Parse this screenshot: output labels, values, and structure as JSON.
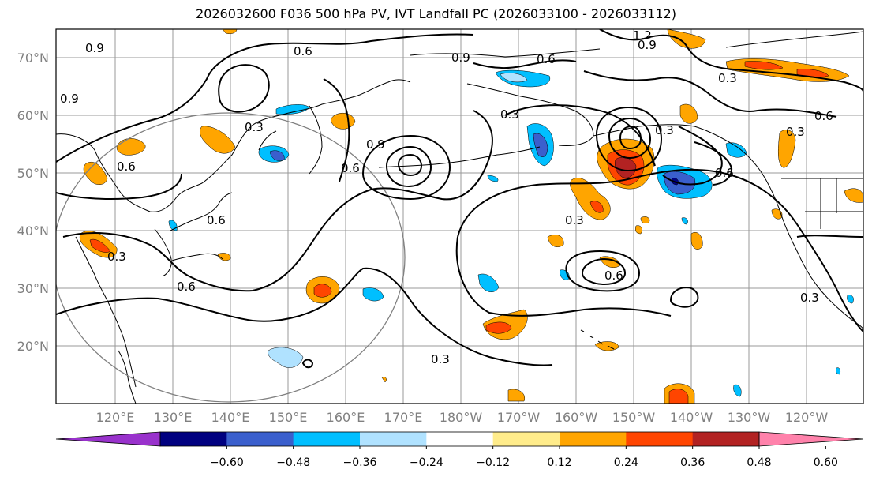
{
  "title": "2026032600 F036 500 hPa PV, IVT Landfall PC (2026033100 - 2026033112)",
  "lat_labels": [
    "70°N",
    "60°N",
    "50°N",
    "40°N",
    "30°N",
    "20°N"
  ],
  "lon_labels": [
    "120°E",
    "130°E",
    "140°E",
    "150°E",
    "160°E",
    "170°E",
    "180°W",
    "170°W",
    "160°W",
    "150°W",
    "140°W",
    "130°W",
    "120°W"
  ],
  "contour_labels": [
    "0.9",
    "0.6",
    "0.9",
    "0.6",
    "0.3",
    "0.9",
    "0.6",
    "0.3",
    "0.6",
    "0.3",
    "0.6",
    "0.3",
    "0.3",
    "0.6",
    "0.6",
    "0.3",
    "0.9",
    "1.2",
    "0.9",
    "0.3",
    "0.6",
    "0.3",
    "0.6",
    "0.3"
  ],
  "colorbar": {
    "colors": [
      "#9932cc",
      "#000080",
      "#3a5fcd",
      "#00bfff",
      "#b0e2ff",
      "#ffffff",
      "#ffec8b",
      "#ffa500",
      "#ff4500",
      "#b22222",
      "#ff82ab"
    ],
    "tick_labels": [
      "−0.60",
      "−0.48",
      "−0.36",
      "−0.24",
      "−0.12",
      "0.12",
      "0.24",
      "0.36",
      "0.48",
      "0.60"
    ]
  }
}
